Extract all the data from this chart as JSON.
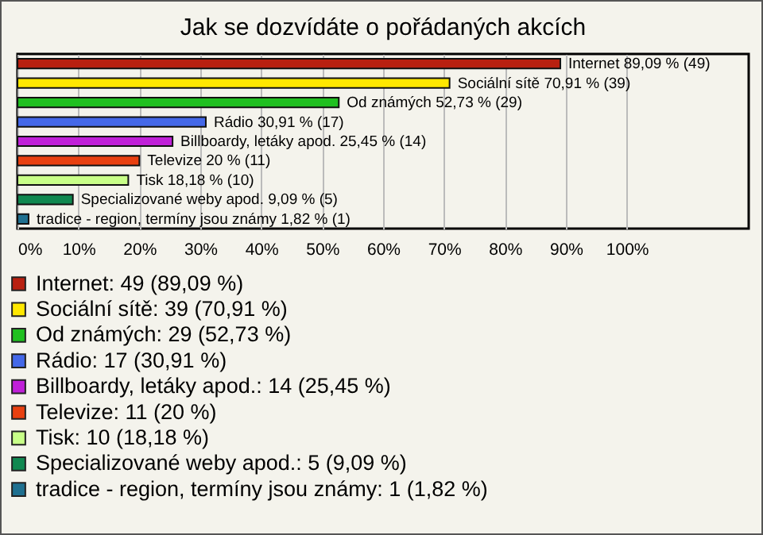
{
  "chart_data": {
    "type": "bar",
    "orientation": "horizontal",
    "title": "Jak se dozvídáte o pořádaných akcích",
    "categories": [
      null,
      null,
      null,
      null,
      null,
      null,
      null,
      null,
      null
    ],
    "xlim": [
      0,
      120
    ],
    "xticks": [
      {
        "value": 0,
        "label": "0%"
      },
      {
        "value": 10,
        "label": "10%"
      },
      {
        "value": 20,
        "label": "20%"
      },
      {
        "value": 30,
        "label": "30%"
      },
      {
        "value": 40,
        "label": "40%"
      },
      {
        "value": 50,
        "label": "50%"
      },
      {
        "value": 60,
        "label": "60%"
      },
      {
        "value": 70,
        "label": "70%"
      },
      {
        "value": 80,
        "label": "80%"
      },
      {
        "value": 90,
        "label": "90%"
      },
      {
        "value": 100,
        "label": "100%"
      }
    ],
    "grid": "x",
    "tick_labels": "x",
    "legend": "bottom left",
    "series": [
      {
        "name": "Internet: 49 (89,09 %)",
        "color": "#b82010",
        "values": [
          89.09,
          null,
          null,
          null,
          null,
          null,
          null,
          null,
          null
        ],
        "value_labels": [
          "Internet 89,09 % (49)",
          null,
          null,
          null,
          null,
          null,
          null,
          null,
          null
        ]
      },
      {
        "name": "Sociální sítě: 39 (70,91 %)",
        "color": "#ffe800",
        "values": [
          null,
          70.91,
          null,
          null,
          null,
          null,
          null,
          null,
          null
        ],
        "value_labels": [
          null,
          "Sociální sítě 70,91 % (39)",
          null,
          null,
          null,
          null,
          null,
          null,
          null
        ]
      },
      {
        "name": "Od známých: 29 (52,73 %)",
        "color": "#20c020",
        "values": [
          null,
          null,
          52.73,
          null,
          null,
          null,
          null,
          null,
          null
        ],
        "value_labels": [
          null,
          null,
          "Od známých 52,73 % (29)",
          null,
          null,
          null,
          null,
          null,
          null
        ]
      },
      {
        "name": "Rádio: 17 (30,91 %)",
        "color": "#4468e8",
        "values": [
          null,
          null,
          null,
          30.91,
          null,
          null,
          null,
          null,
          null
        ],
        "value_labels": [
          null,
          null,
          null,
          "Rádio 30,91 % (17)",
          null,
          null,
          null,
          null,
          null
        ]
      },
      {
        "name": "Billboardy, letáky apod.: 14 (25,45 %)",
        "color": "#c020d8",
        "values": [
          null,
          null,
          null,
          null,
          25.45,
          null,
          null,
          null,
          null
        ],
        "value_labels": [
          null,
          null,
          null,
          null,
          "Billboardy, letáky apod. 25,45 % (14)",
          null,
          null,
          null,
          null
        ]
      },
      {
        "name": "Televize: 11 (20 %)",
        "color": "#e84010",
        "values": [
          null,
          null,
          null,
          null,
          null,
          20,
          null,
          null,
          null
        ],
        "value_labels": [
          null,
          null,
          null,
          null,
          null,
          "Televize 20 % (11)",
          null,
          null,
          null
        ]
      },
      {
        "name": "Tisk: 10 (18,18 %)",
        "color": "#c8ff88",
        "values": [
          null,
          null,
          null,
          null,
          null,
          null,
          18.18,
          null,
          null
        ],
        "value_labels": [
          null,
          null,
          null,
          null,
          null,
          null,
          "Tisk 18,18 % (10)",
          null,
          null
        ]
      },
      {
        "name": "Specializované weby apod.: 5 (9,09 %)",
        "color": "#108850",
        "values": [
          null,
          null,
          null,
          null,
          null,
          null,
          null,
          9.09,
          null
        ],
        "value_labels": [
          null,
          null,
          null,
          null,
          null,
          null,
          null,
          "Specializované weby apod. 9,09 % (5)",
          null
        ]
      },
      {
        "name": "tradice - region, termíny jsou známy: 1 (1,82 %)",
        "color": "#1f7090",
        "values": [
          null,
          null,
          null,
          null,
          null,
          null,
          null,
          null,
          1.82
        ],
        "value_labels": [
          null,
          null,
          null,
          null,
          null,
          null,
          null,
          null,
          "tradice - region, termíny jsou známy 1,82 % (1)"
        ]
      }
    ]
  }
}
